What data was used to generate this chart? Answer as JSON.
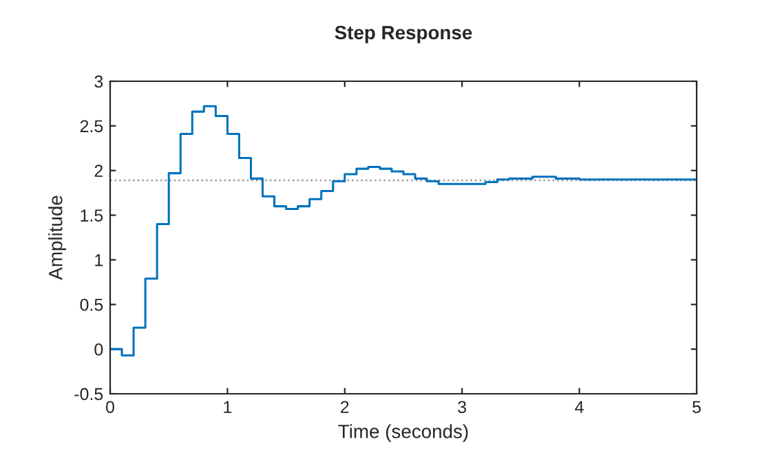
{
  "chart_data": {
    "type": "step",
    "title": "Step Response",
    "xlabel": "Time (seconds)",
    "ylabel": "Amplitude",
    "series": [
      {
        "color": "#0072bd",
        "x": [
          0,
          0.1,
          0.2,
          0.3,
          0.4,
          0.5,
          0.6,
          0.7,
          0.8,
          0.9,
          1.0,
          1.1,
          1.2,
          1.3,
          1.4,
          1.5,
          1.6,
          1.7,
          1.8,
          1.9,
          2.0,
          2.1,
          2.2,
          2.3,
          2.4,
          2.5,
          2.6,
          2.7,
          2.8,
          3.2,
          3.3,
          3.4,
          3.6,
          3.8,
          4.0,
          5.0
        ],
        "values": [
          0,
          -0.07,
          0.24,
          0.79,
          1.4,
          1.97,
          2.41,
          2.66,
          2.72,
          2.61,
          2.41,
          2.14,
          1.91,
          1.71,
          1.6,
          1.57,
          1.6,
          1.68,
          1.77,
          1.88,
          1.96,
          2.02,
          2.04,
          2.02,
          1.99,
          1.96,
          1.91,
          1.88,
          1.85,
          1.87,
          1.9,
          1.91,
          1.93,
          1.91,
          1.9,
          1.9
        ]
      }
    ],
    "ref_lines": [
      {
        "axis": "y",
        "value": 1.89,
        "color": "#999999",
        "line_style": "dotted"
      }
    ],
    "xlim": [
      0,
      5
    ],
    "xticks": [
      0,
      1,
      2,
      3,
      4,
      5
    ],
    "ylim": [
      -0.5,
      3
    ],
    "yticks": [
      -0.5,
      0,
      0.5,
      1,
      1.5,
      2,
      2.5,
      3
    ],
    "grid": false,
    "legend": false
  }
}
